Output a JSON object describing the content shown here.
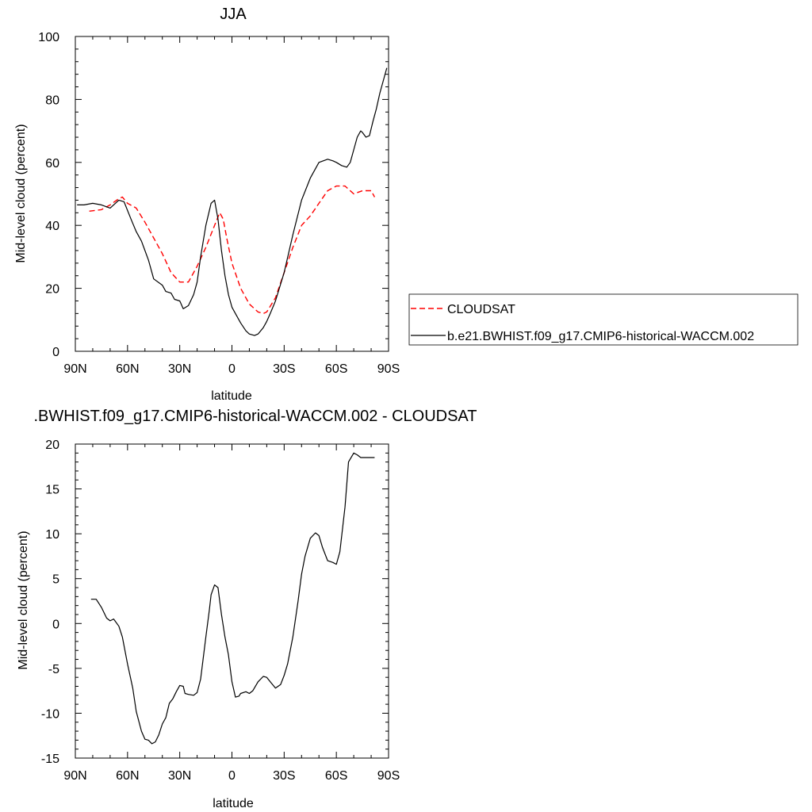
{
  "chart_data": [
    {
      "type": "line",
      "title": "JJA",
      "xlabel": "latitude",
      "ylabel": "Mid-level cloud (percent)",
      "xlim": [
        90,
        -90
      ],
      "ylim": [
        0,
        100
      ],
      "xticks": [
        90,
        60,
        30,
        0,
        -30,
        -60,
        -90
      ],
      "xtick_labels": [
        "90N",
        "60N",
        "30N",
        "0",
        "30S",
        "60S",
        "90S"
      ],
      "yticks": [
        0,
        20,
        40,
        60,
        80,
        100
      ],
      "ytick_labels": [
        "0",
        "20",
        "40",
        "60",
        "80",
        "100"
      ],
      "legend_position": "right",
      "series": [
        {
          "name": "CLOUDSAT",
          "color": "#ff0000",
          "dash": "dashed",
          "x": [
            82,
            75,
            70,
            65,
            63,
            60,
            55,
            50,
            45,
            40,
            35,
            30,
            25,
            20,
            15,
            10,
            7,
            5,
            3,
            0,
            -5,
            -10,
            -15,
            -18,
            -20,
            -25,
            -30,
            -35,
            -40,
            -45,
            -50,
            -55,
            -60,
            -65,
            -70,
            -75,
            -80,
            -82
          ],
          "y": [
            44.5,
            45,
            46.5,
            48.5,
            49,
            47,
            45.5,
            41,
            36,
            31,
            25,
            22,
            22,
            27,
            33,
            40,
            44,
            42,
            36,
            28,
            20,
            15,
            12.5,
            12,
            12.5,
            17,
            25,
            33,
            40,
            43,
            47,
            51,
            52.5,
            52.5,
            50,
            51,
            51,
            49
          ]
        },
        {
          "name": "b.e21.BWHIST.f09_g17.CMIP6-historical-WACCM.002",
          "color": "#000000",
          "dash": "solid",
          "x": [
            89,
            85,
            80,
            75,
            70,
            65,
            62,
            58,
            55,
            52,
            50,
            48,
            45,
            40,
            38,
            35,
            33,
            30,
            28,
            25,
            22,
            20,
            18,
            15,
            12,
            10,
            8,
            6,
            4,
            2,
            0,
            -2,
            -5,
            -8,
            -10,
            -13,
            -15,
            -18,
            -20,
            -22,
            -25,
            -30,
            -35,
            -40,
            -45,
            -50,
            -55,
            -58,
            -60,
            -63,
            -66,
            -68,
            -70,
            -72,
            -74,
            -75,
            -77,
            -79,
            -81,
            -83,
            -85,
            -87,
            -89
          ],
          "y": [
            46.5,
            46.5,
            47,
            46.5,
            45.5,
            48,
            47.5,
            42,
            38,
            35,
            32,
            29,
            23,
            21,
            19,
            18.5,
            16.5,
            16,
            13.5,
            14.5,
            18,
            22,
            30,
            40,
            47,
            48,
            42,
            32,
            24,
            18,
            14,
            12,
            9,
            6.5,
            5.5,
            5,
            5.5,
            7.5,
            9.5,
            12,
            16,
            25,
            37,
            48,
            55,
            60,
            61,
            60.5,
            60,
            59,
            58.5,
            60,
            64,
            68,
            70,
            69.5,
            68,
            68.5,
            73,
            77,
            82,
            86,
            90
          ]
        }
      ]
    },
    {
      "type": "line",
      "title": ".BWHIST.f09_g17.CMIP6-historical-WACCM.002 - CLOUDSAT",
      "xlabel": "latitude",
      "ylabel": "Mid-level cloud (percent)",
      "xlim": [
        90,
        -90
      ],
      "ylim": [
        -15,
        20
      ],
      "xticks": [
        90,
        60,
        30,
        0,
        -30,
        -60,
        -90
      ],
      "xtick_labels": [
        "90N",
        "60N",
        "30N",
        "0",
        "30S",
        "60S",
        "90S"
      ],
      "yticks": [
        -15,
        -10,
        -5,
        0,
        5,
        10,
        15,
        20
      ],
      "ytick_labels": [
        "-15",
        "-10",
        "-5",
        "0",
        "5",
        "10",
        "15",
        "20"
      ],
      "series": [
        {
          "color": "#000000",
          "dash": "solid",
          "x": [
            81,
            78,
            75,
            72,
            70,
            68,
            65,
            63,
            60,
            57,
            55,
            52,
            50,
            48,
            46,
            44,
            42,
            40,
            38,
            36,
            34,
            32,
            30,
            28,
            27,
            25,
            22,
            20,
            18,
            15,
            13,
            12,
            10,
            8,
            6,
            4,
            2,
            0,
            -2,
            -4,
            -5,
            -8,
            -10,
            -12,
            -15,
            -18,
            -20,
            -22,
            -25,
            -28,
            -30,
            -32,
            -35,
            -38,
            -40,
            -42,
            -45,
            -48,
            -50,
            -52,
            -55,
            -58,
            -60,
            -62,
            -65,
            -67,
            -70,
            -72,
            -74,
            -76,
            -78,
            -80,
            -82
          ],
          "y": [
            2.7,
            2.7,
            1.8,
            0.6,
            0.3,
            0.5,
            -0.3,
            -1.5,
            -4.5,
            -7.2,
            -9.8,
            -12.0,
            -12.9,
            -13.0,
            -13.4,
            -13.2,
            -12.4,
            -11.2,
            -10.5,
            -8.9,
            -8.4,
            -7.6,
            -6.9,
            -7.0,
            -7.8,
            -7.9,
            -8.0,
            -7.7,
            -6.2,
            -1.5,
            1.5,
            3.2,
            4.3,
            4.0,
            1.0,
            -1.5,
            -3.5,
            -6.5,
            -8.2,
            -8.1,
            -7.8,
            -7.6,
            -7.8,
            -7.5,
            -6.5,
            -5.9,
            -6.0,
            -6.5,
            -7.2,
            -6.8,
            -5.8,
            -4.5,
            -1.5,
            2.5,
            5.5,
            7.5,
            9.5,
            10.1,
            9.8,
            8.5,
            7.0,
            6.8,
            6.6,
            8.0,
            13.0,
            18.0,
            19.0,
            18.8,
            18.5,
            18.5,
            18.5,
            18.5,
            18.5
          ]
        }
      ]
    }
  ]
}
